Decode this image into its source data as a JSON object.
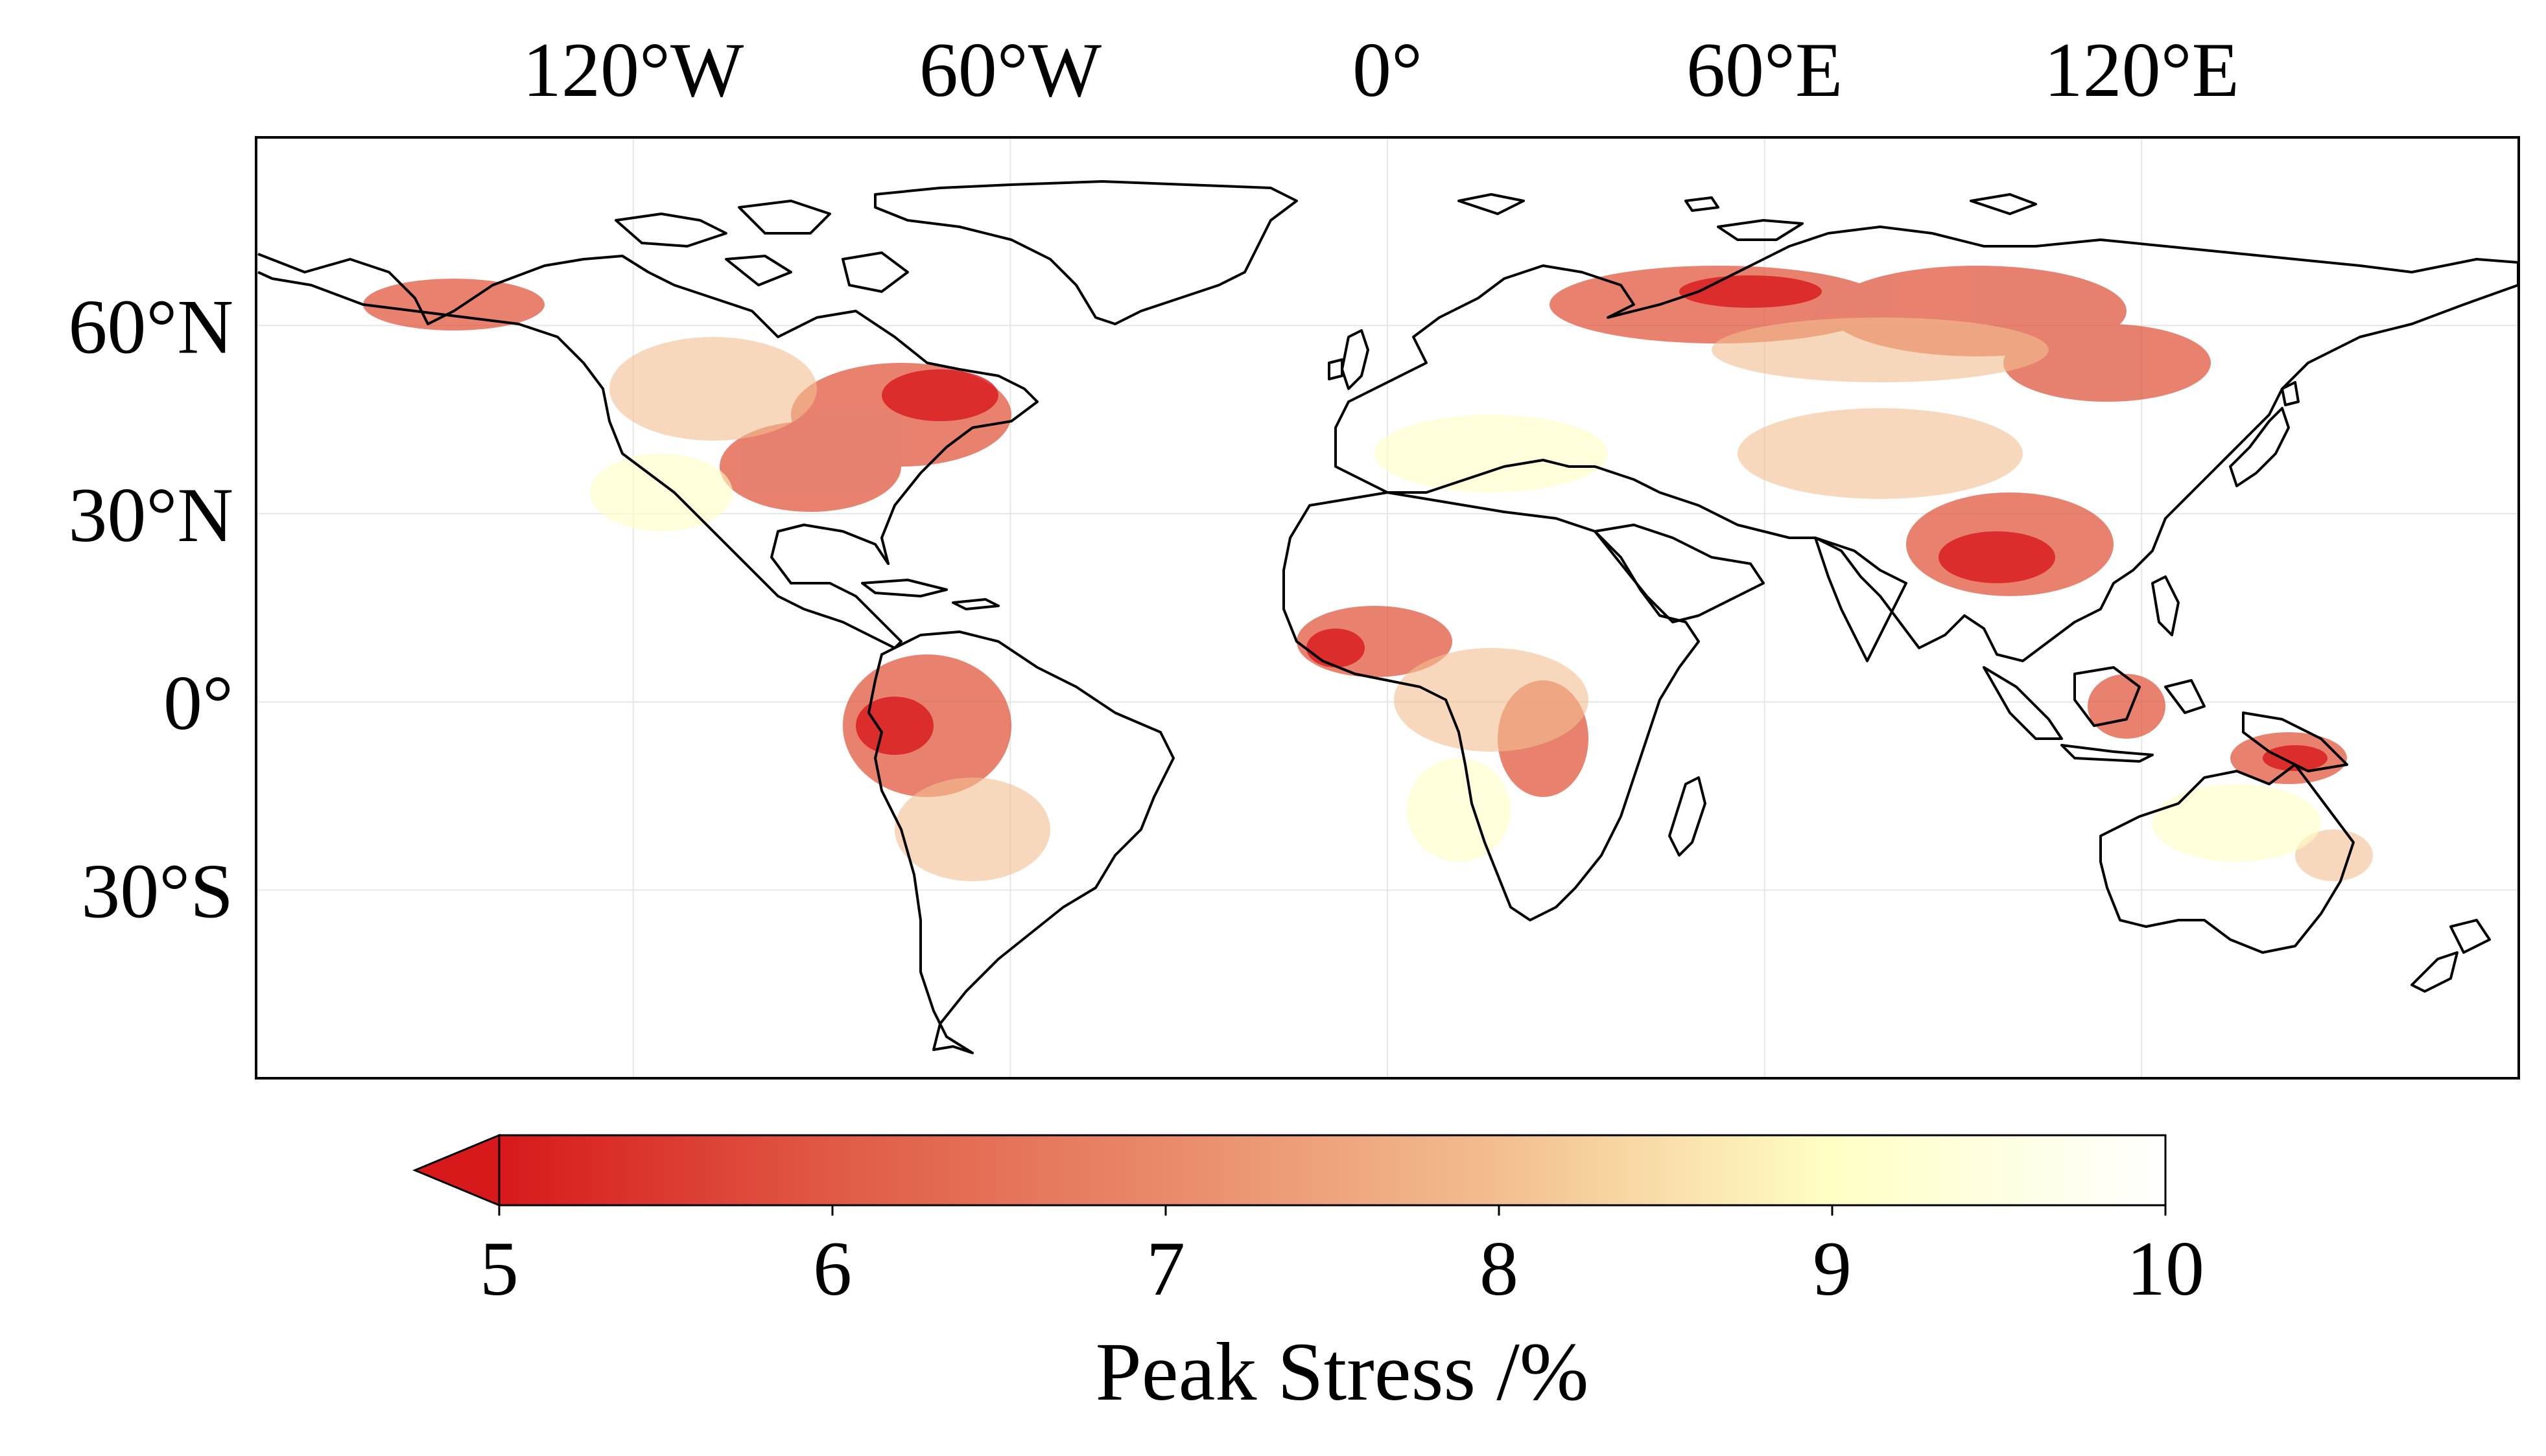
{
  "map": {
    "lon_ticks": [
      "120°W",
      "60°W",
      "0°",
      "60°E",
      "120°E"
    ],
    "lat_ticks": [
      "60°N",
      "30°N",
      "0°",
      "30°S"
    ],
    "lon_tick_values": [
      -120,
      -60,
      0,
      60,
      120
    ],
    "lat_tick_values": [
      60,
      30,
      0,
      -30
    ],
    "extent": {
      "lon": [
        -180,
        180
      ],
      "lat": [
        -60,
        90
      ]
    },
    "gridlines": true,
    "coastlines": true
  },
  "colorbar": {
    "label": "Peak Stress /%",
    "tick_labels": [
      "5",
      "6",
      "7",
      "8",
      "9",
      "10"
    ],
    "ticks": [
      5,
      6,
      7,
      8,
      9,
      10
    ],
    "range": [
      5,
      10
    ],
    "extend": "min",
    "colors": [
      "#d7191c",
      "#e05a45",
      "#e98a6b",
      "#f3be90",
      "#ffffc4",
      "#ffffff"
    ]
  },
  "colors": {
    "stress_high": "#d7191c",
    "stress_low": "#ffffff",
    "coastline": "#000000"
  }
}
